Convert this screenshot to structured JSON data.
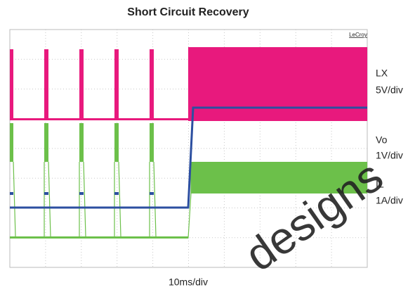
{
  "title": "Short Circuit Recovery",
  "brand": "LeCroy",
  "traces": [
    {
      "name": "LX",
      "scale": "5V/div"
    },
    {
      "name": "Vo",
      "scale": "1V/div"
    },
    {
      "name": "IL",
      "scale": "1A/div"
    }
  ],
  "x_scale": "10ms/div",
  "watermark": "designs"
}
